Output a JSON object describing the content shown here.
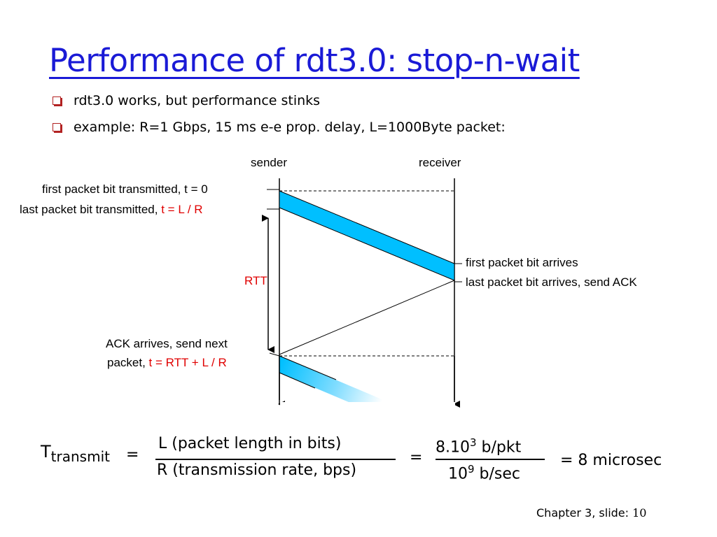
{
  "title": "Performance of rdt3.0: stop-n-wait",
  "bullets": [
    "rdt3.0 works, but performance stinks",
    "example: R=1 Gbps, 15 ms e-e prop. delay, L=1000Byte packet:"
  ],
  "diagram": {
    "sender_label": "sender",
    "receiver_label": "receiver",
    "first_bit_tx": "first packet bit transmitted, t = 0",
    "last_bit_tx_prefix": "last packet bit transmitted,",
    "last_bit_tx_time": "t = L / R",
    "rtt_label": "RTT",
    "first_bit_arrives": "first packet bit arrives",
    "last_bit_arrives": "last packet bit arrives, send ACK",
    "ack_arrives_line1": "ACK arrives, send next",
    "ack_arrives_line2_prefix": "packet,",
    "ack_arrives_time": "t = RTT + L / R",
    "colors": {
      "packet": "#00bfff",
      "highlight": "#e00000",
      "title": "#1a1ad6"
    }
  },
  "equation": {
    "t_symbol": "T",
    "t_subscript": "transmit",
    "equals": "=",
    "numerator": "L (packet length in bits)",
    "denominator": "R (transmission rate, bps)",
    "equals2": "=",
    "num2_base": "8.10",
    "num2_exp": "3",
    "num2_unit": "b/pkt",
    "den2_base": "10",
    "den2_exp": "9",
    "den2_unit": "b/sec",
    "result": "= 8 microsec"
  },
  "footer": {
    "label": "Chapter 3, slide:",
    "number": "10"
  }
}
